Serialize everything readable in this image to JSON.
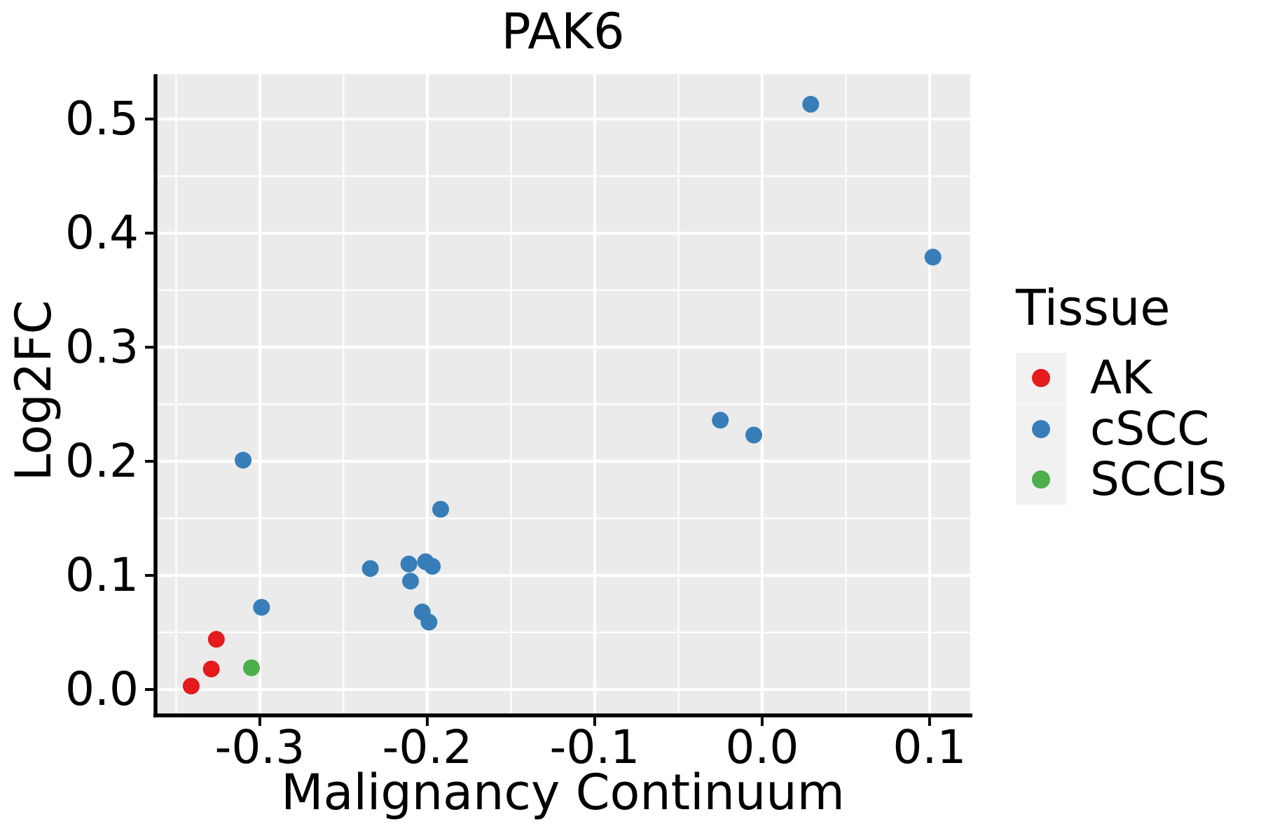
{
  "chart_data": {
    "type": "scatter",
    "title": "PAK6",
    "xlabel": "Malignancy Continuum",
    "ylabel": "Log2FC",
    "xlim": [
      -0.3623,
      0.1243
    ],
    "ylim": [
      -0.0227,
      0.5393
    ],
    "x_ticks": [
      -0.3,
      -0.2,
      -0.1,
      0.0,
      0.1
    ],
    "x_tick_labels": [
      "-0.3",
      "-0.2",
      "-0.1",
      "0.0",
      "0.1"
    ],
    "y_ticks": [
      0.0,
      0.1,
      0.2,
      0.3,
      0.4,
      0.5
    ],
    "y_tick_labels": [
      "0.0",
      "0.1",
      "0.2",
      "0.3",
      "0.4",
      "0.5"
    ],
    "grid": {
      "major": true,
      "minor": true,
      "color": "#ffffff"
    },
    "panel_background": "#ebebeb",
    "axis_color": "#000000",
    "text_color": "#000000",
    "legend": {
      "title": "Tissue",
      "position": "right",
      "key_background": "#f1f1f1",
      "items": [
        {
          "label": "AK",
          "color": "#e41a1c"
        },
        {
          "label": "cSCC",
          "color": "#377eb8"
        },
        {
          "label": "SCCIS",
          "color": "#4daf4a"
        }
      ]
    },
    "series": [
      {
        "name": "AK",
        "color": "#e41a1c",
        "points": [
          [
            -0.341,
            0.003
          ],
          [
            -0.329,
            0.018
          ],
          [
            -0.326,
            0.044
          ]
        ]
      },
      {
        "name": "cSCC",
        "color": "#377eb8",
        "points": [
          [
            -0.31,
            0.201
          ],
          [
            -0.299,
            0.072
          ],
          [
            -0.234,
            0.106
          ],
          [
            -0.211,
            0.11
          ],
          [
            -0.21,
            0.095
          ],
          [
            -0.201,
            0.112
          ],
          [
            -0.197,
            0.108
          ],
          [
            -0.203,
            0.068
          ],
          [
            -0.199,
            0.059
          ],
          [
            -0.192,
            0.158
          ],
          [
            -0.025,
            0.236
          ],
          [
            -0.005,
            0.223
          ],
          [
            0.029,
            0.513
          ],
          [
            0.102,
            0.379
          ]
        ]
      },
      {
        "name": "SCCIS",
        "color": "#4daf4a",
        "points": [
          [
            -0.305,
            0.019
          ]
        ]
      }
    ]
  }
}
